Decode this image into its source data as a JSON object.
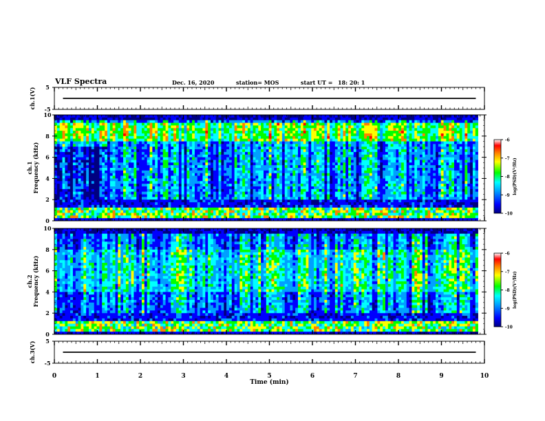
{
  "header": {
    "title": "VLF Spectra",
    "date": "Dec. 16, 2020",
    "station": "station= MOS",
    "start_label": "start  UT =",
    "start_time": "18: 20: 1"
  },
  "chart_data": [
    {
      "type": "line",
      "id": "ch1-waveform",
      "ylabel": "ch.1(V)",
      "ylim": [
        -5,
        5
      ],
      "y_ticks": [
        "5",
        "-5"
      ],
      "xlim": [
        0,
        10
      ],
      "series": [
        {
          "x": [
            0.2,
            9.8
          ],
          "y": [
            0,
            0
          ]
        }
      ]
    },
    {
      "type": "heatmap",
      "id": "ch1-spectrogram",
      "ylabel": "ch.1\nFrequency (kHz)",
      "ylim": [
        0,
        10
      ],
      "y_ticks": [
        "0",
        "2",
        "4",
        "6",
        "8",
        "10"
      ],
      "xlim": [
        0,
        9.85
      ],
      "value_units": "log(PSD)(V²/Hz)",
      "colorbar": {
        "label": "log(PSD)(V²/Hz)",
        "ticks": [
          "-6",
          "-7",
          "-8",
          "-9",
          "-10"
        ],
        "range": [
          -10,
          -6
        ]
      }
    },
    {
      "type": "heatmap",
      "id": "ch2-spectrogram",
      "ylabel": "ch.2\nFrequency (kHz)",
      "ylim": [
        0,
        10
      ],
      "y_ticks": [
        "0",
        "2",
        "4",
        "6",
        "8",
        "10"
      ],
      "xlim": [
        0,
        9.85
      ],
      "value_units": "log(PSD)(V²/Hz)",
      "colorbar": {
        "label": "log(PSD)(V²/Hz)",
        "ticks": [
          "-6",
          "-7",
          "-8",
          "-9",
          "-10"
        ],
        "range": [
          -10,
          -6
        ]
      }
    },
    {
      "type": "line",
      "id": "ch3-waveform",
      "ylabel": "ch.3(V)",
      "ylim": [
        -5,
        5
      ],
      "y_ticks": [
        "5",
        "-5"
      ],
      "xlim": [
        0,
        10
      ],
      "series": [
        {
          "x": [
            0.2,
            9.8
          ],
          "y": [
            0,
            0
          ]
        }
      ]
    }
  ],
  "x_axis": {
    "label": "Time  (min)",
    "ticks": [
      "0",
      "1",
      "2",
      "3",
      "4",
      "5",
      "6",
      "7",
      "8",
      "9",
      "10"
    ],
    "range": [
      0,
      10
    ]
  },
  "colors": {
    "colormap": [
      "#000080",
      "#0000ff",
      "#00a0ff",
      "#00ffff",
      "#00ff00",
      "#ffff00",
      "#ff8000",
      "#ff0000",
      "#ffffff"
    ]
  }
}
